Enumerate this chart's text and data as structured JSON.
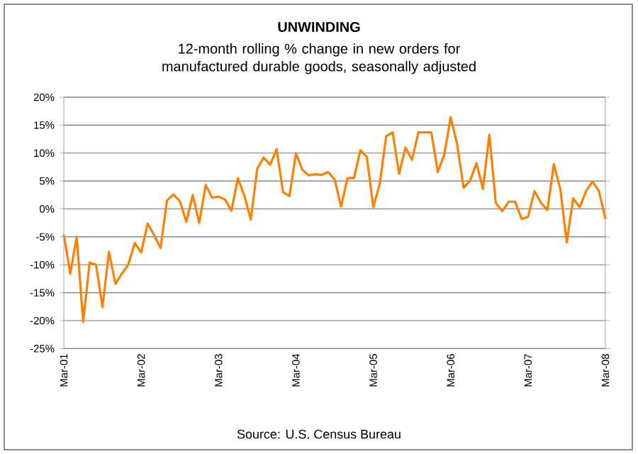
{
  "chart_data": {
    "type": "line",
    "title": "UNWINDING",
    "subtitle": "12-month rolling % change in new orders for manufactured durable goods, seasonally adjusted",
    "annotations": [
      "Source: U.S. Census Bureau"
    ],
    "x": [
      "2001-03",
      "2001-04",
      "2001-05",
      "2001-06",
      "2001-07",
      "2001-08",
      "2001-09",
      "2001-10",
      "2001-11",
      "2001-12",
      "2002-01",
      "2002-02",
      "2002-03",
      "2002-04",
      "2002-05",
      "2002-06",
      "2002-07",
      "2002-08",
      "2002-09",
      "2002-10",
      "2002-11",
      "2002-12",
      "2003-01",
      "2003-02",
      "2003-03",
      "2003-04",
      "2003-05",
      "2003-06",
      "2003-07",
      "2003-08",
      "2003-09",
      "2003-10",
      "2003-11",
      "2003-12",
      "2004-01",
      "2004-02",
      "2004-03",
      "2004-04",
      "2004-05",
      "2004-06",
      "2004-07",
      "2004-08",
      "2004-09",
      "2004-10",
      "2004-11",
      "2004-12",
      "2005-01",
      "2005-02",
      "2005-03",
      "2005-04",
      "2005-05",
      "2005-06",
      "2005-07",
      "2005-08",
      "2005-09",
      "2005-10",
      "2005-11",
      "2005-12",
      "2006-01",
      "2006-02",
      "2006-03",
      "2006-04",
      "2006-05",
      "2006-06",
      "2006-07",
      "2006-08",
      "2006-09",
      "2006-10",
      "2006-11",
      "2006-12",
      "2007-01",
      "2007-02",
      "2007-03",
      "2007-04",
      "2007-05",
      "2007-06",
      "2007-07",
      "2007-08",
      "2007-09",
      "2007-10",
      "2007-11",
      "2007-12",
      "2008-01",
      "2008-02",
      "2008-03"
    ],
    "series": [
      {
        "color": "#ff7f00",
        "values": [
          -4.6,
          -11.6,
          -5,
          -20.2,
          -9.6,
          -10,
          -17.6,
          -7.7,
          -13.4,
          -11.6,
          -10,
          -6.1,
          -7.8,
          -2.6,
          -4.7,
          -7,
          1.5,
          2.6,
          1.4,
          -2.3,
          2.5,
          -2.5,
          4.3,
          2,
          2.2,
          1.7,
          -0.3,
          5.5,
          2.4,
          -1.9,
          7.2,
          9.2,
          7.9,
          10.7,
          3,
          2.3,
          10,
          7,
          6,
          6.2,
          6.1,
          6.6,
          5.3,
          0.4,
          5.5,
          5.5,
          10.5,
          9.3,
          0.3,
          4.5,
          13,
          13.7,
          6.3,
          11,
          8.8,
          13.7,
          13.7,
          13.7,
          6.6,
          9.7,
          16.4,
          11.6,
          3.8,
          5,
          8.2,
          3.6,
          13.3,
          1.1,
          -0.4,
          1.3,
          1.3,
          -1.8,
          -1.4,
          3.2,
          1.1,
          -0.2,
          8,
          3.6,
          -6,
          1.9,
          0.3,
          3.2,
          4.9,
          3.2,
          -1.8
        ]
      }
    ],
    "xlim": [
      "2001-03",
      "2008-03"
    ],
    "xticks": [
      {
        "value": "2001-03",
        "label": "Mar-01"
      },
      {
        "value": "2002-03",
        "label": "Mar-02"
      },
      {
        "value": "2003-03",
        "label": "Mar-03"
      },
      {
        "value": "2004-03",
        "label": "Mar-04"
      },
      {
        "value": "2005-03",
        "label": "Mar-05"
      },
      {
        "value": "2006-03",
        "label": "Mar-06"
      },
      {
        "value": "2007-03",
        "label": "Mar-07"
      },
      {
        "value": "2008-03",
        "label": "Mar-08"
      }
    ],
    "ylim": [
      -25,
      20
    ],
    "yticks": [
      {
        "value": -25,
        "label": "-25%"
      },
      {
        "value": -20,
        "label": "-20%"
      },
      {
        "value": -15,
        "label": "-15%"
      },
      {
        "value": -10,
        "label": "-10%"
      },
      {
        "value": -5,
        "label": "-5%"
      },
      {
        "value": 0,
        "label": "0%"
      },
      {
        "value": 5,
        "label": "5%"
      },
      {
        "value": 10,
        "label": "10%"
      },
      {
        "value": 15,
        "label": "15%"
      },
      {
        "value": 20,
        "label": "20%"
      }
    ],
    "grid": "y"
  }
}
